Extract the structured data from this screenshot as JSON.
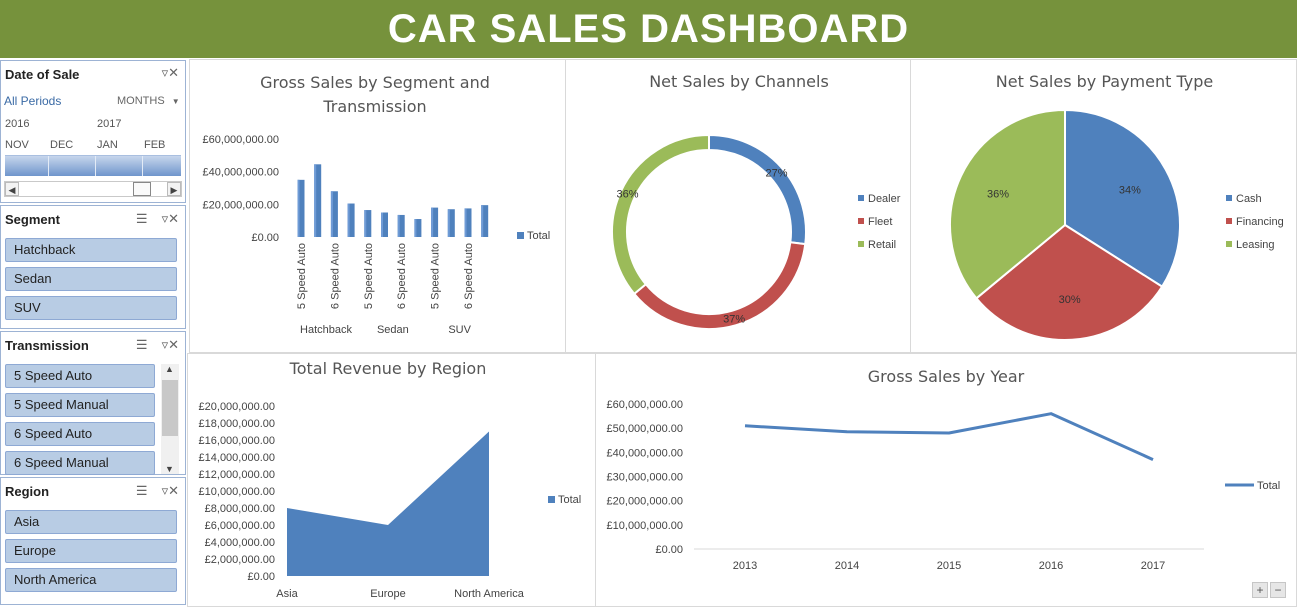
{
  "header": {
    "title": "CAR SALES DASHBOARD"
  },
  "colors": {
    "header_bg": "#76923c",
    "blue": "#4f81bd",
    "red": "#c0504d",
    "green": "#9bbb59",
    "slicer_item": "#b8cce4"
  },
  "date_slicer": {
    "title": "Date of Sale",
    "period_label": "All Periods",
    "level_label": "MONTHS",
    "years": [
      "2016",
      "2017"
    ],
    "months": [
      "NOV",
      "DEC",
      "JAN",
      "FEB"
    ]
  },
  "segment_slicer": {
    "title": "Segment",
    "items": [
      "Hatchback",
      "Sedan",
      "SUV"
    ]
  },
  "transmission_slicer": {
    "title": "Transmission",
    "items": [
      "5 Speed Auto",
      "5 Speed Manual",
      "6 Speed Auto",
      "6 Speed Manual"
    ]
  },
  "region_slicer": {
    "title": "Region",
    "items": [
      "Asia",
      "Europe",
      "North America"
    ]
  },
  "icons": {
    "multi_select": "multi-select-icon",
    "clear_filter": "clear-filter-icon"
  },
  "chart_data": [
    {
      "id": "gross_segment",
      "type": "bar",
      "title": "Gross Sales by Segment and Transmission",
      "groups": [
        "Hatchback",
        "Sedan",
        "SUV"
      ],
      "x_tick_labels": [
        "5 Speed Auto",
        "6 Speed Auto",
        "5 Speed Auto",
        "6 Speed Auto",
        "5 Speed Auto",
        "6 Speed Auto"
      ],
      "values": [
        35000000,
        44500000,
        28000000,
        20500000,
        16500000,
        15000000,
        13500000,
        11000000,
        18000000,
        17000000,
        17500000,
        19500000
      ],
      "y_tick_labels": [
        "£0.00",
        "£20,000,000.00",
        "£40,000,000.00",
        "£60,000,000.00"
      ],
      "ylim": [
        0,
        60000000
      ],
      "legend": [
        "Total"
      ]
    },
    {
      "id": "net_channels",
      "type": "pie",
      "donut": true,
      "title": "Net Sales by Channels",
      "labels": [
        "Dealer",
        "Fleet",
        "Retail"
      ],
      "values": [
        27,
        37,
        36
      ],
      "value_labels": [
        "27%",
        "37%",
        "36%"
      ],
      "colors": [
        "#4f81bd",
        "#c0504d",
        "#9bbb59"
      ],
      "legend": [
        "Dealer",
        "Fleet",
        "Retail"
      ]
    },
    {
      "id": "net_payment",
      "type": "pie",
      "title": "Net Sales by Payment Type",
      "labels": [
        "Cash",
        "Financing",
        "Leasing"
      ],
      "values": [
        34,
        30,
        36
      ],
      "value_labels": [
        "34%",
        "30%",
        "36%"
      ],
      "colors": [
        "#4f81bd",
        "#c0504d",
        "#9bbb59"
      ],
      "legend": [
        "Cash",
        "Financing",
        "Leasing"
      ]
    },
    {
      "id": "revenue_region",
      "type": "area",
      "title": "Total Revenue by Region",
      "categories": [
        "Asia",
        "Europe",
        "North America"
      ],
      "values": [
        8000000,
        6000000,
        17000000
      ],
      "y_tick_labels": [
        "£0.00",
        "£2,000,000.00",
        "£4,000,000.00",
        "£6,000,000.00",
        "£8,000,000.00",
        "£10,000,000.00",
        "£12,000,000.00",
        "£14,000,000.00",
        "£16,000,000.00",
        "£18,000,000.00",
        "£20,000,000.00"
      ],
      "ylim": [
        0,
        20000000
      ],
      "legend": [
        "Total"
      ]
    },
    {
      "id": "gross_year",
      "type": "line",
      "title": "Gross Sales by Year",
      "categories": [
        "2013",
        "2014",
        "2015",
        "2016",
        "2017"
      ],
      "values": [
        51000000,
        48500000,
        48000000,
        56000000,
        37000000
      ],
      "y_tick_labels": [
        "£0.00",
        "£10,000,000.00",
        "£20,000,000.00",
        "£30,000,000.00",
        "£40,000,000.00",
        "£50,000,000.00",
        "£60,000,000.00"
      ],
      "ylim": [
        0,
        60000000
      ],
      "legend": [
        "Total"
      ]
    }
  ],
  "zoom": {
    "plus": "+",
    "minus": "−"
  }
}
